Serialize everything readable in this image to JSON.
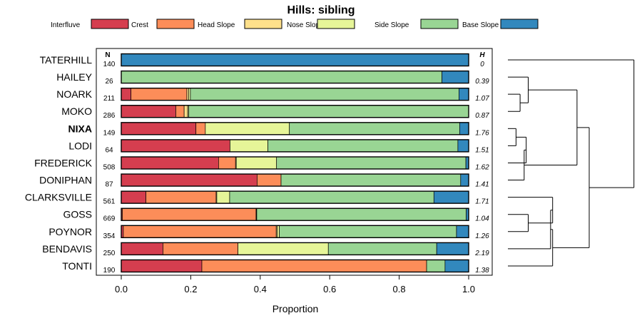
{
  "chart_data": {
    "type": "bar",
    "stacked": true,
    "orientation": "horizontal",
    "title": "Hills: sibling",
    "xlabel": "Proportion",
    "ylabel": "",
    "xlim": [
      0,
      1
    ],
    "xticks": [
      "0.0",
      "0.2",
      "0.4",
      "0.6",
      "0.8",
      "1.0"
    ],
    "xtick_values": [
      0,
      0.2,
      0.4,
      0.6,
      0.8,
      1.0
    ],
    "n_header": "N",
    "h_header": "H",
    "highlight": "NIXA",
    "legend": [
      {
        "name": "Interfluve",
        "color": "#D53E4F"
      },
      {
        "name": "Crest",
        "color": "#FC8D59"
      },
      {
        "name": "Head Slope",
        "color": "#FEE08B"
      },
      {
        "name": "Nose Slope",
        "color": "#E6F598"
      },
      {
        "name": "Side Slope",
        "color": "#99D594"
      },
      {
        "name": "Base Slope",
        "color": "#3288BD"
      }
    ],
    "rows": [
      {
        "name": "TATERHILL",
        "n": "140",
        "h": "0",
        "values": [
          0,
          0,
          0,
          0,
          0,
          1.0
        ]
      },
      {
        "name": "HAILEY",
        "n": "26",
        "h": "0.39",
        "values": [
          0,
          0,
          0,
          0,
          0.923,
          0.077
        ]
      },
      {
        "name": "NOARK",
        "n": "211",
        "h": "1.07",
        "values": [
          0.028,
          0.161,
          0.005,
          0.005,
          0.773,
          0.028
        ]
      },
      {
        "name": "MOKO",
        "n": "286",
        "h": "0.87",
        "values": [
          0.157,
          0.024,
          0.01,
          0.003,
          0.806,
          0
        ]
      },
      {
        "name": "NIXA",
        "n": "149",
        "h": "1.76",
        "values": [
          0.215,
          0.027,
          0,
          0.242,
          0.49,
          0.026
        ]
      },
      {
        "name": "LODI",
        "n": "64",
        "h": "1.51",
        "values": [
          0.313,
          0,
          0,
          0.109,
          0.547,
          0.031
        ]
      },
      {
        "name": "FREDERICK",
        "n": "508",
        "h": "1.62",
        "values": [
          0.28,
          0.049,
          0.002,
          0.116,
          0.545,
          0.008
        ]
      },
      {
        "name": "DONIPHAN",
        "n": "87",
        "h": "1.41",
        "values": [
          0.391,
          0.069,
          0,
          0,
          0.517,
          0.023
        ]
      },
      {
        "name": "CLARKSVILLE",
        "n": "561",
        "h": "1.71",
        "values": [
          0.071,
          0.202,
          0.002,
          0.037,
          0.588,
          0.1
        ]
      },
      {
        "name": "GOSS",
        "n": "669",
        "h": "1.04",
        "values": [
          0.003,
          0.385,
          0.001,
          0.001,
          0.603,
          0.007
        ]
      },
      {
        "name": "POYNOR",
        "n": "354",
        "h": "1.26",
        "values": [
          0.006,
          0.44,
          0.003,
          0.006,
          0.51,
          0.035
        ]
      },
      {
        "name": "BENDAVIS",
        "n": "250",
        "h": "2.19",
        "values": [
          0.12,
          0.216,
          0,
          0.26,
          0.312,
          0.092
        ]
      },
      {
        "name": "TONTI",
        "n": "190",
        "h": "1.38",
        "values": [
          0.232,
          0.647,
          0,
          0,
          0.053,
          0.068
        ]
      }
    ],
    "dendrogram": {
      "leaf_order": [
        "TATERHILL",
        "HAILEY",
        "NOARK",
        "MOKO",
        "NIXA",
        "LODI",
        "FREDERICK",
        "DONIPHAN",
        "CLARKSVILLE",
        "GOSS",
        "POYNOR",
        "BENDAVIS",
        "TONTI"
      ],
      "merges": [
        {
          "a": {
            "leaf": 2
          },
          "b": {
            "leaf": 3
          },
          "height": 0.03
        },
        {
          "a": {
            "leaf": 1
          },
          "b": {
            "node": 0
          },
          "height": 0.05
        },
        {
          "a": {
            "leaf": 4
          },
          "b": {
            "leaf": 5
          },
          "height": 0.02
        },
        {
          "a": {
            "node": 2
          },
          "b": {
            "leaf": 6
          },
          "height": 0.045
        },
        {
          "a": {
            "node": 3
          },
          "b": {
            "leaf": 7
          },
          "height": 0.04
        },
        {
          "a": {
            "node": 1
          },
          "b": {
            "node": 4
          },
          "height": 0.17
        },
        {
          "a": {
            "leaf": 9
          },
          "b": {
            "leaf": 10
          },
          "height": 0.05
        },
        {
          "a": {
            "leaf": 8
          },
          "b": {
            "node": 6
          },
          "height": 0.11
        },
        {
          "a": {
            "node": 7
          },
          "b": {
            "leaf": 11
          },
          "height": 0.105
        },
        {
          "a": {
            "node": 8
          },
          "b": {
            "leaf": 12
          },
          "height": 0.11
        },
        {
          "a": {
            "node": 5
          },
          "b": {
            "node": 9
          },
          "height": 0.2
        },
        {
          "a": {
            "leaf": 0
          },
          "b": {
            "node": 10
          },
          "height": 0.31
        }
      ]
    }
  }
}
